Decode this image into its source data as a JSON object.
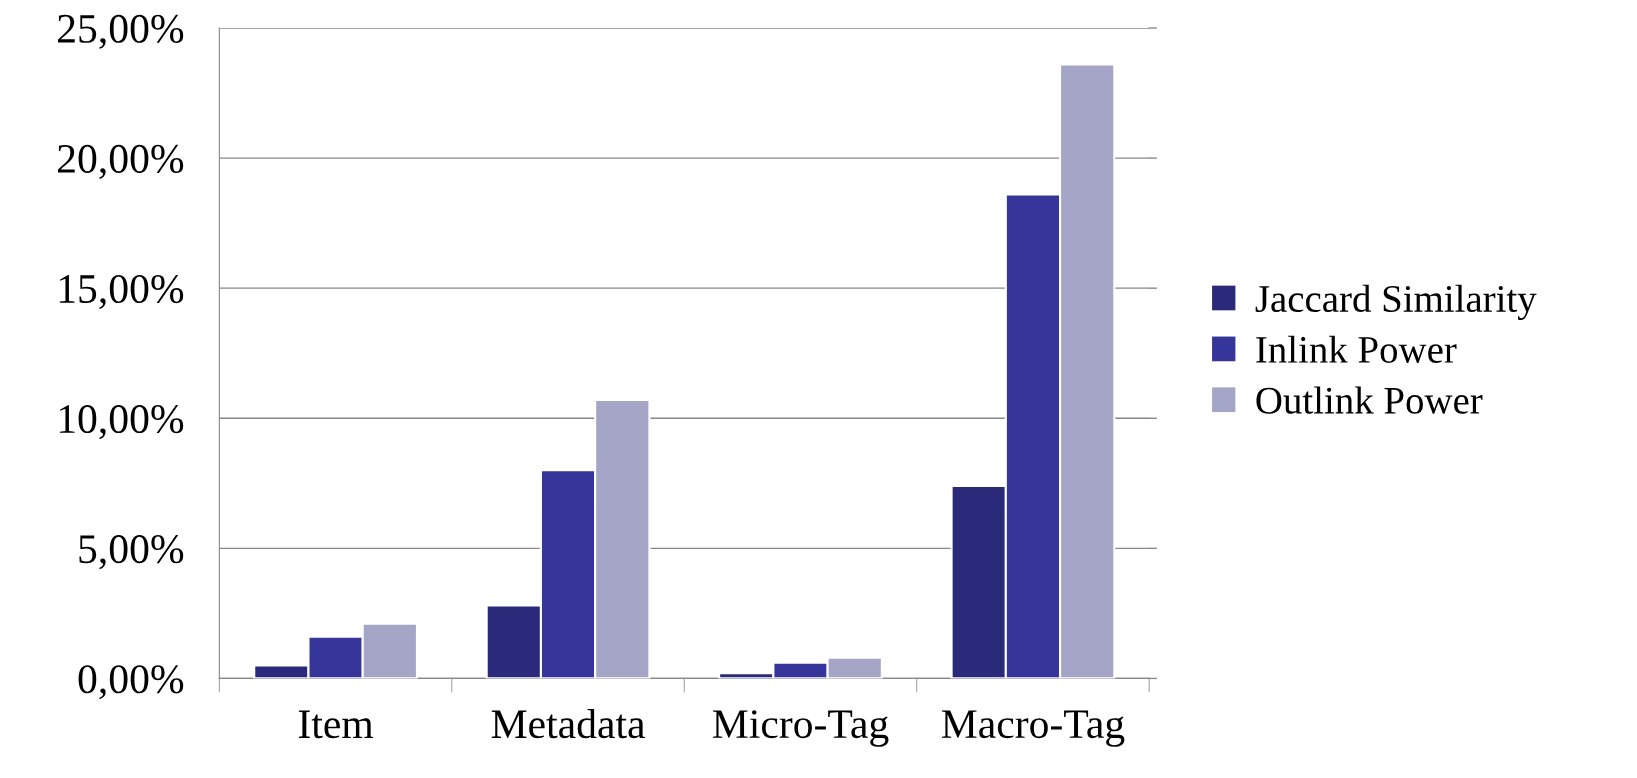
{
  "chart_data": {
    "type": "bar",
    "categories": [
      "Item",
      "Metadata",
      "Micro-Tag",
      "Macro-Tag"
    ],
    "series": [
      {
        "name": "Jaccard Similarity",
        "color": "#2b2a7a",
        "values": [
          0.5,
          2.8,
          0.2,
          7.4
        ]
      },
      {
        "name": "Inlink Power",
        "color": "#36359a",
        "values": [
          1.6,
          8.0,
          0.6,
          18.6
        ]
      },
      {
        "name": "Outlink Power",
        "color": "#a5a5c8",
        "values": [
          2.1,
          10.7,
          0.8,
          23.6
        ]
      }
    ],
    "ylim": [
      0,
      25
    ],
    "yticks": [
      {
        "value": 0,
        "label": "0,00%"
      },
      {
        "value": 5,
        "label": "5,00%"
      },
      {
        "value": 10,
        "label": "10,00%"
      },
      {
        "value": 15,
        "label": "15,00%"
      },
      {
        "value": 20,
        "label": "20,00%"
      },
      {
        "value": 25,
        "label": "25,00%"
      }
    ],
    "grid": "y",
    "legend": "right"
  }
}
